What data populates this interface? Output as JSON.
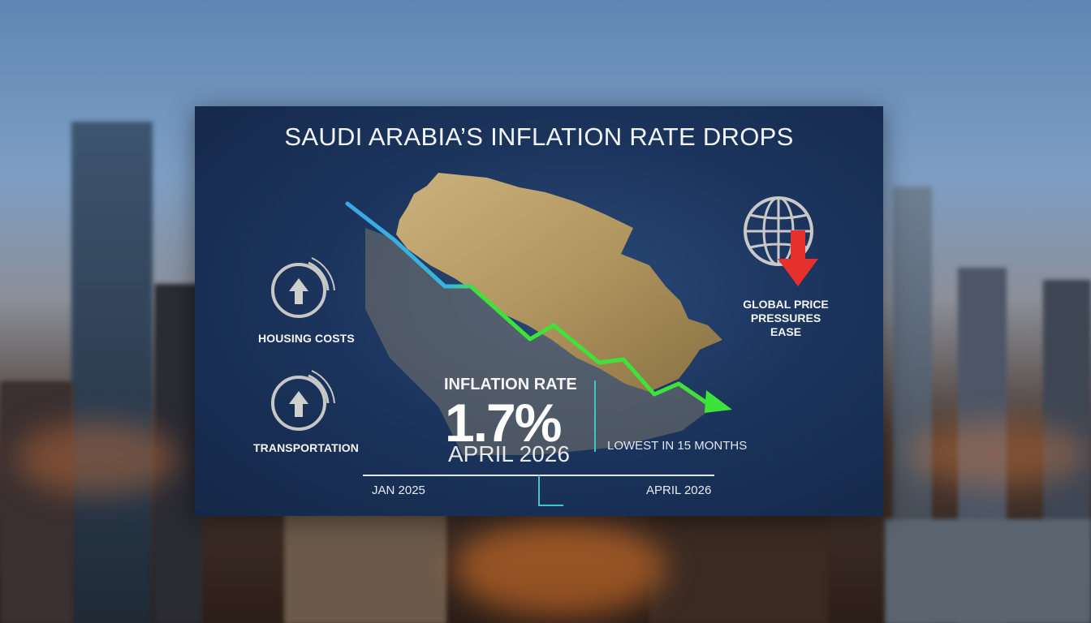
{
  "title": "SAUDI ARABIA’S INFLATION RATE DROPS",
  "indicators": {
    "housing": {
      "label": "HOUSING COSTS",
      "icon": "up-arrow-icon"
    },
    "transport": {
      "label": "TRANSPORTATION",
      "icon": "up-arrow-icon"
    }
  },
  "inflation": {
    "label": "INFLATION RATE",
    "value": "1.7%",
    "date": "APRIL 2026"
  },
  "note": "LOWEST IN 15 MONTHS",
  "global": {
    "label": "GLOBAL PRICE PRESSURES EASE",
    "icon": "globe-down-arrow-icon"
  },
  "timeline": {
    "start": "JAN 2025",
    "end": "APRIL 2026"
  },
  "colors": {
    "panel": "#1c355e",
    "trend_start": "#3aa8e6",
    "trend_end": "#3ee33a",
    "map": "#b89a5e",
    "down_arrow": "#e5302c",
    "accent": "#3ec8c0"
  }
}
